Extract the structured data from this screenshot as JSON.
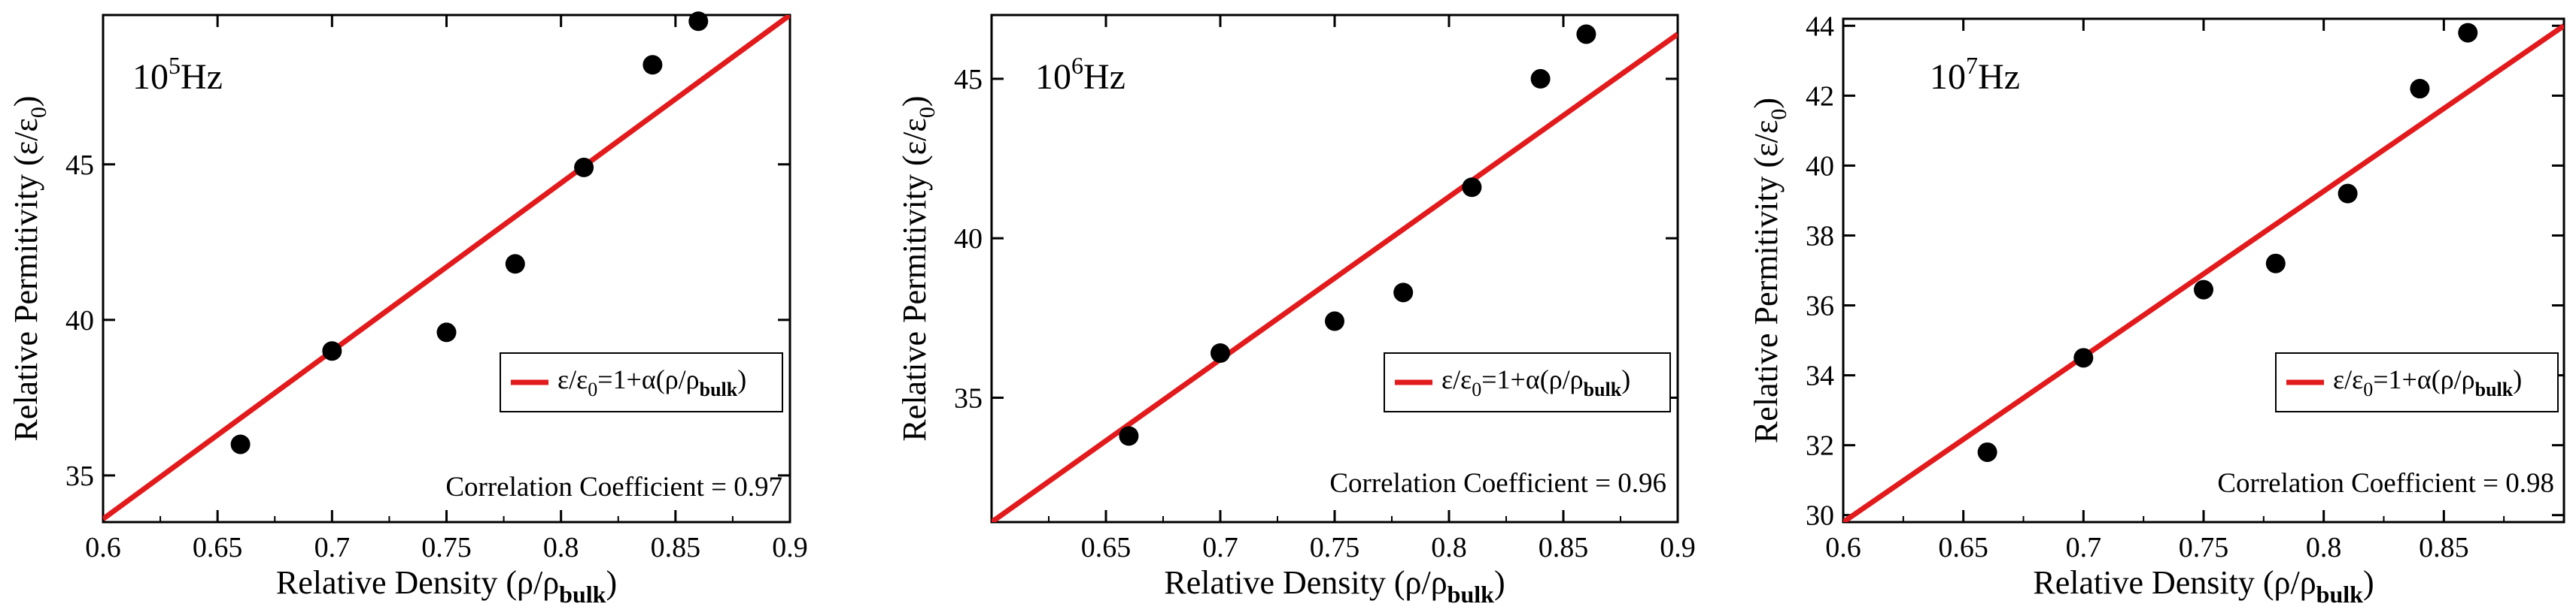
{
  "colors": {
    "fit": "#e31a1c",
    "point": "#000000",
    "axis": "#000000",
    "legend_border": "#000000",
    "background": "#ffffff"
  },
  "chart_data": [
    {
      "type": "scatter",
      "frequency_base": "10",
      "frequency_exp": "5",
      "frequency_unit": "Hz",
      "xlabel": "Relative Density (ρ/ρ",
      "xlabel_sub": "bulk",
      "xlabel_end": ")",
      "ylabel": "Relative Permitivity (ε/ε",
      "ylabel_sub": "0",
      "ylabel_end": ")",
      "xlim": [
        0.6,
        0.9
      ],
      "ylim": [
        33.5,
        49.8
      ],
      "xticks": [
        0.6,
        0.65,
        0.7,
        0.75,
        0.8,
        0.85,
        0.9
      ],
      "xtick_labels": [
        "0.6",
        "0.65",
        "0.7",
        "0.75",
        "0.8",
        "0.85",
        "0.9"
      ],
      "yticks": [
        35,
        40,
        45
      ],
      "ytick_labels": [
        "35",
        "40",
        "45"
      ],
      "points": {
        "x": [
          0.66,
          0.7,
          0.75,
          0.78,
          0.81,
          0.84,
          0.86
        ],
        "y": [
          36.0,
          39.0,
          39.6,
          41.8,
          44.9,
          48.2,
          49.6
        ]
      },
      "fit": {
        "x": [
          0.6,
          0.9
        ],
        "y": [
          33.6,
          49.8
        ]
      },
      "legend": {
        "eps": "ε/ε",
        "eps_sub": "0",
        "rest": "=1+α(ρ/ρ",
        "rest_sub": "bulk",
        "end": ")",
        "location": "middle-right"
      },
      "annotation": "Correlation Coefficient = 0.97"
    },
    {
      "type": "scatter",
      "frequency_base": "10",
      "frequency_exp": "6",
      "frequency_unit": "Hz",
      "xlabel": "Relative Density (ρ/ρ",
      "xlabel_sub": "bulk",
      "xlabel_end": ")",
      "ylabel": "Relative Permitivity (ε/ε",
      "ylabel_sub": "0",
      "ylabel_end": ")",
      "xlim": [
        0.6,
        0.9
      ],
      "ylim": [
        31.1,
        47.0
      ],
      "xticks": [
        0.65,
        0.7,
        0.75,
        0.8,
        0.85,
        0.9
      ],
      "xtick_labels": [
        "0.65",
        "0.7",
        "0.75",
        "0.8",
        "0.85",
        "0.9"
      ],
      "yticks": [
        35,
        40,
        45
      ],
      "ytick_labels": [
        "35",
        "40",
        "45"
      ],
      "points": {
        "x": [
          0.66,
          0.7,
          0.75,
          0.78,
          0.81,
          0.84,
          0.86
        ],
        "y": [
          33.8,
          36.4,
          37.4,
          38.3,
          41.6,
          45.0,
          46.4
        ]
      },
      "fit": {
        "x": [
          0.6,
          0.9
        ],
        "y": [
          31.1,
          46.4
        ]
      },
      "legend": {
        "eps": "ε/ε",
        "eps_sub": "0",
        "rest": "=1+α(ρ/ρ",
        "rest_sub": "bulk",
        "end": ")",
        "location": "middle-right"
      },
      "annotation": "Correlation Coefficient = 0.96"
    },
    {
      "type": "scatter",
      "frequency_base": "10",
      "frequency_exp": "7",
      "frequency_unit": "Hz",
      "xlabel": "Relative Density (ρ/ρ",
      "xlabel_sub": "bulk",
      "xlabel_end": ")",
      "ylabel": "Relative Permitivity (ε/ε",
      "ylabel_sub": "0",
      "ylabel_end": ")",
      "xlim": [
        0.6,
        0.9
      ],
      "ylim": [
        29.8,
        44.2
      ],
      "xticks": [
        0.6,
        0.65,
        0.7,
        0.75,
        0.8,
        0.85
      ],
      "xtick_labels": [
        "0.6",
        "0.65",
        "0.7",
        "0.75",
        "0.8",
        "0.85"
      ],
      "yticks": [
        30,
        32,
        34,
        36,
        38,
        40,
        42,
        44
      ],
      "ytick_labels": [
        "30",
        "32",
        "34",
        "36",
        "38",
        "40",
        "42",
        "44"
      ],
      "points": {
        "x": [
          0.66,
          0.7,
          0.75,
          0.78,
          0.81,
          0.84,
          0.86
        ],
        "y": [
          31.8,
          34.5,
          36.45,
          37.2,
          39.2,
          42.2,
          43.8
        ]
      },
      "fit": {
        "x": [
          0.6,
          0.9
        ],
        "y": [
          29.8,
          44.0
        ]
      },
      "legend": {
        "eps": "ε/ε",
        "eps_sub": "0",
        "rest": "=1+α(ρ/ρ",
        "rest_sub": "bulk",
        "end": ")",
        "location": "middle-right"
      },
      "annotation": "Correlation Coefficient = 0.98"
    }
  ]
}
